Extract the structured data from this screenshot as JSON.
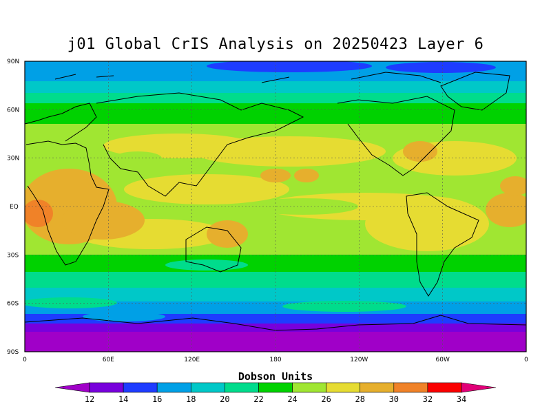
{
  "title": "j01 Global CrIS Analysis on 20250423 Layer 6",
  "colorbar": {
    "label": "Dobson Units",
    "ticks": [
      "12",
      "14",
      "16",
      "18",
      "20",
      "22",
      "24",
      "26",
      "28",
      "30",
      "32",
      "34"
    ],
    "colors": [
      "#a000c8",
      "#7800dc",
      "#1e3cff",
      "#00a0e6",
      "#00c8c8",
      "#00dc8c",
      "#00d200",
      "#a0e632",
      "#e6dc32",
      "#e6af2d",
      "#f08228",
      "#fa0000",
      "#e10078"
    ]
  },
  "axes": {
    "lat_labels": [
      "90N",
      "60N",
      "30N",
      "EQ",
      "30S",
      "60S",
      "90S"
    ],
    "lon_labels": [
      "0",
      "60E",
      "120E",
      "180",
      "120W",
      "60W",
      "0"
    ]
  },
  "map": {
    "projection": "cylindrical equidistant",
    "gridlines": true,
    "field": "total ozone, Dobson Units"
  }
}
